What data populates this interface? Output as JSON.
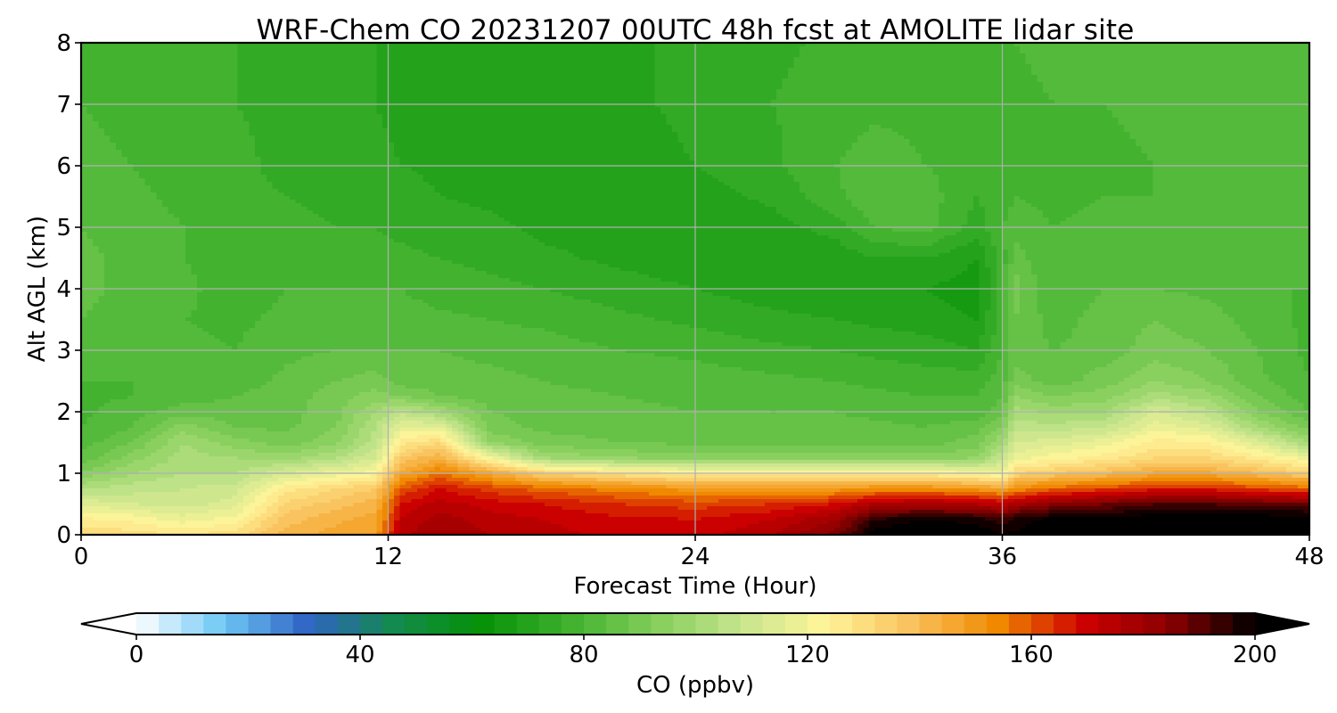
{
  "chart_data": {
    "type": "heatmap",
    "title": "WRF-Chem CO  20231207 00UTC 48h fcst at AMOLITE lidar site",
    "xlabel": "Forecast Time (Hour)",
    "ylabel": "Alt AGL (km)",
    "xlim": [
      0,
      48
    ],
    "ylim": [
      0,
      8
    ],
    "xticks": [
      0,
      12,
      24,
      36,
      48
    ],
    "yticks": [
      0,
      1,
      2,
      3,
      4,
      5,
      6,
      7,
      8
    ],
    "grid": true,
    "colorbar": {
      "label": "CO  (ppbv)",
      "range": [
        0,
        200
      ],
      "ticks": [
        0,
        40,
        80,
        120,
        160,
        200
      ],
      "extend": "both",
      "orientation": "horizontal",
      "colors": [
        "#ffffff",
        "#6ec8f5",
        "#2f63c4",
        "#138a4e",
        "#069106",
        "#3db02c",
        "#82cd5a",
        "#c5e58c",
        "#fff59a",
        "#f9c25e",
        "#f08a00",
        "#ce0000",
        "#8a0000",
        "#000000"
      ]
    },
    "x": [
      0,
      2,
      4,
      6,
      8,
      10,
      11.5,
      12.5,
      14,
      16,
      18,
      21,
      24,
      27,
      29.5,
      31,
      33,
      35,
      36,
      36.5,
      38,
      40,
      42,
      44,
      46,
      48
    ],
    "y": [
      0,
      0.25,
      0.5,
      0.75,
      1,
      1.25,
      1.5,
      1.75,
      2,
      2.25,
      2.5,
      3,
      3.5,
      4,
      4.5,
      5,
      5.5,
      6,
      7,
      8
    ],
    "z": [
      [
        132,
        130,
        128,
        130,
        142,
        146,
        148,
        175,
        180,
        176,
        174,
        170,
        170,
        176,
        186,
        202,
        206,
        204,
        200,
        201,
        204,
        205,
        206,
        206,
        206,
        206
      ],
      [
        125,
        123,
        118,
        122,
        138,
        143,
        146,
        172,
        178,
        174,
        172,
        169,
        168,
        172,
        180,
        196,
        200,
        198,
        194,
        197,
        202,
        202,
        204,
        204,
        204,
        204
      ],
      [
        115,
        112,
        110,
        114,
        133,
        138,
        142,
        168,
        174,
        170,
        168,
        164,
        162,
        164,
        168,
        176,
        178,
        176,
        172,
        178,
        184,
        188,
        192,
        192,
        190,
        188
      ],
      [
        104,
        106,
        108,
        110,
        126,
        132,
        136,
        160,
        168,
        162,
        158,
        154,
        150,
        150,
        150,
        152,
        152,
        150,
        146,
        152,
        158,
        162,
        166,
        166,
        162,
        158
      ],
      [
        92,
        100,
        104,
        104,
        112,
        118,
        122,
        146,
        156,
        146,
        134,
        128,
        124,
        124,
        124,
        124,
        124,
        120,
        118,
        132,
        136,
        140,
        145,
        145,
        140,
        134
      ],
      [
        85,
        94,
        102,
        100,
        98,
        104,
        112,
        136,
        144,
        120,
        100,
        96,
        94,
        94,
        94,
        94,
        94,
        96,
        108,
        118,
        122,
        126,
        132,
        132,
        126,
        118
      ],
      [
        82,
        88,
        100,
        94,
        90,
        95,
        106,
        126,
        132,
        96,
        90,
        88,
        87,
        87,
        87,
        87,
        86,
        90,
        100,
        112,
        114,
        118,
        126,
        124,
        114,
        100
      ],
      [
        80,
        84,
        94,
        88,
        87,
        92,
        104,
        116,
        116,
        90,
        87,
        86,
        85,
        85,
        85,
        85,
        84,
        86,
        92,
        106,
        106,
        108,
        118,
        114,
        100,
        90
      ],
      [
        79,
        82,
        86,
        86,
        86,
        91,
        100,
        106,
        100,
        88,
        86,
        85,
        84,
        84,
        84,
        83,
        82,
        82,
        86,
        102,
        98,
        100,
        112,
        106,
        92,
        84
      ],
      [
        79,
        80,
        82,
        84,
        86,
        90,
        94,
        92,
        88,
        86,
        85,
        84,
        83,
        83,
        82,
        81,
        80,
        80,
        84,
        96,
        92,
        94,
        102,
        98,
        88,
        82
      ],
      [
        80,
        80,
        82,
        82,
        85,
        88,
        90,
        86,
        86,
        85,
        84,
        83,
        82,
        81,
        80,
        79,
        78,
        78,
        82,
        90,
        86,
        90,
        96,
        92,
        85,
        80
      ],
      [
        82,
        81,
        81,
        80,
        83,
        84,
        84,
        84,
        84,
        83,
        82,
        80,
        79,
        77,
        76,
        75,
        74,
        72,
        80,
        86,
        84,
        86,
        90,
        88,
        84,
        79
      ],
      [
        84,
        82,
        80,
        79,
        81,
        82,
        82,
        82,
        81,
        80,
        79,
        77,
        75,
        73,
        72,
        71,
        70,
        68,
        78,
        88,
        82,
        86,
        88,
        86,
        82,
        79
      ],
      [
        85,
        83,
        81,
        78,
        80,
        80,
        80,
        80,
        78,
        77,
        76,
        74,
        72,
        70,
        69,
        69,
        68,
        66,
        78,
        90,
        80,
        84,
        84,
        83,
        80,
        80
      ],
      [
        85,
        83,
        80,
        78,
        78,
        78,
        77,
        77,
        76,
        75,
        73,
        71,
        69,
        68,
        69,
        72,
        72,
        68,
        78,
        86,
        80,
        82,
        82,
        81,
        80,
        81
      ],
      [
        84,
        82,
        80,
        78,
        77,
        76,
        76,
        75,
        74,
        73,
        71,
        70,
        69,
        70,
        74,
        80,
        82,
        74,
        80,
        82,
        80,
        81,
        81,
        82,
        81,
        82
      ],
      [
        83,
        81,
        79,
        77,
        76,
        75,
        74,
        74,
        72,
        71,
        70,
        69,
        70,
        73,
        79,
        84,
        82,
        76,
        78,
        80,
        79,
        80,
        80,
        82,
        82,
        82
      ],
      [
        82,
        80,
        78,
        77,
        75,
        74,
        73,
        72,
        71,
        70,
        69,
        70,
        72,
        75,
        80,
        82,
        80,
        78,
        78,
        79,
        79,
        79,
        80,
        82,
        82,
        81
      ],
      [
        80,
        78,
        77,
        76,
        75,
        73,
        72,
        71,
        70,
        69,
        70,
        71,
        73,
        76,
        78,
        79,
        79,
        78,
        78,
        79,
        80,
        80,
        81,
        82,
        82,
        80
      ],
      [
        79,
        78,
        77,
        76,
        74,
        73,
        72,
        70,
        69,
        68,
        69,
        71,
        73,
        75,
        77,
        77,
        78,
        78,
        79,
        80,
        81,
        81,
        82,
        82,
        81,
        80
      ]
    ]
  }
}
